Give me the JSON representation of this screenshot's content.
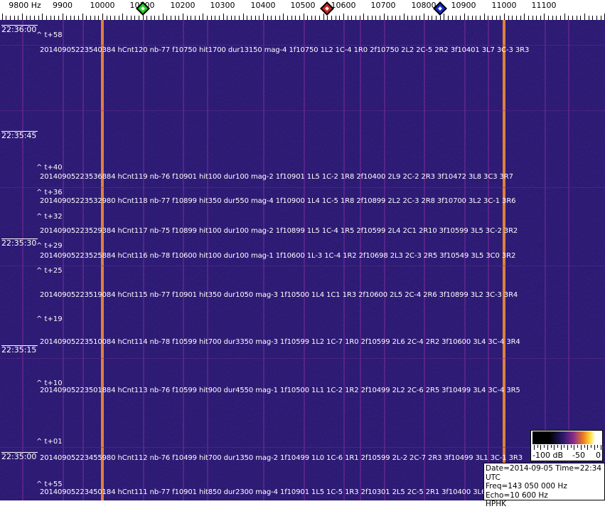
{
  "axis": {
    "unit_label": "9800 Hz",
    "ticks": [
      "9900",
      "10000",
      "10100",
      "10200",
      "10300",
      "10400",
      "10500",
      "10600",
      "10700",
      "10800",
      "10900",
      "11000",
      "11100"
    ],
    "markers": [
      {
        "name": "green-marker",
        "freq_hz": 10100,
        "color": "#22cc22"
      },
      {
        "name": "red-marker",
        "freq_hz": 10560,
        "color": "#cc2222"
      },
      {
        "name": "blue-marker",
        "freq_hz": 10840,
        "color": "#1a2acc"
      }
    ]
  },
  "time_labels": [
    "22:36:00",
    "22:35:45",
    "22:35:30",
    "22:35:15",
    "22:35:00"
  ],
  "notes": [
    "^ t+58",
    "^ t+40",
    "^ t+36",
    "^ t+32",
    "^ t+29",
    "^ t+25",
    "^ t+19",
    "^ t+10",
    "^ t+01",
    "^ t+55"
  ],
  "lines": [
    "20140905223540384 hCnt120 nb-77 f10750 hit1700 dur13150 mag-4 1f10750 1L2 1C-4 1R0 2f10750 2L2 2C-5 2R2 3f10401 3L7 3C-3 3R3",
    "20140905223536884 hCnt119 nb-76 f10901 hit100 dur100 mag-2 1f10901 1L5 1C-2 1R8 2f10400 2L9 2C-2 2R3 3f10472 3L8 3C3 3R7",
    "20140905223532980 hCnt118 nb-77 f10899 hit350 dur550 mag-4 1f10900 1L4 1C-5 1R8 2f10899 2L2 2C-3 2R8 3f10700 3L2 3C-1 3R6",
    "20140905223529384 hCnt117 nb-75 f10899 hit100 dur100 mag-2 1f10899 1L5 1C-4 1R5 2f10599 2L4 2C1 2R10 3f10599 3L5 3C-2 3R2",
    "20140905223525884 hCnt116 nb-78 f10600 hit100 dur100 mag-1 1f10600 1L-3 1C-4 1R2 2f10698 2L3 2C-3 2R5 3f10549 3L5 3C0 3R2",
    "20140905223519084 hCnt115 nb-77 f10901 hit350 dur1050 mag-3 1f10500 1L4 1C1 1R3 2f10600 2L5 2C-4 2R6 3f10899 3L2 3C-3 3R4",
    "20140905223510084 hCnt114 nb-78 f10599 hit700 dur3350 mag-3 1f10599 1L2 1C-7 1R0 2f10599 2L6 2C-4 2R2 3f10600 3L4 3C-4 3R4",
    "20140905223501884 hCnt113 nb-76 f10599 hit900 dur4550 mag-1 1f10500 1L1 1C-2 1R2 2f10499 2L2 2C-6 2R5 3f10499 3L4 3C-4 3R5",
    "20140905223455980 hCnt112 nb-76 f10499 hit700 dur1350 mag-2 1f10499 1L0 1C-6 1R1 2f10599 2L-2 2C-7 2R3 3f10499 3L1 3C-1 3R3",
    "20140905223450184 hCnt111 nb-77 f10901 hit850 dur2300 mag-4 1f10901 1L5 1C-5 1R3 2f10301 2L5 2C-5 2R1 3f10400 3L6 3C"
  ],
  "colorbar": {
    "labels": [
      "-100 dB",
      "-50",
      "0"
    ]
  },
  "info": {
    "date_time": "Date=2014-09-05 Time=22:34 UTC",
    "freq": "Freq=143 050 000 Hz",
    "echo": "Echo=10 600 Hz",
    "station": "HPHK"
  },
  "colors": {
    "background": "#2b1a72",
    "carrier": "#e0803a",
    "text": "#ffffff"
  }
}
